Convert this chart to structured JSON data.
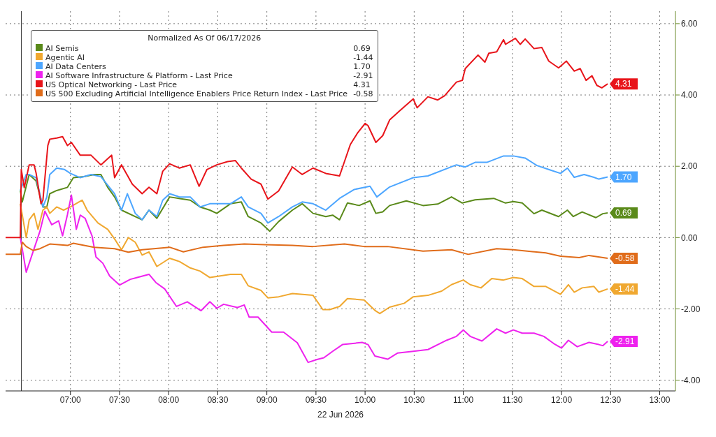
{
  "chart_data": {
    "type": "line",
    "xlabel": "22 Jun 2026",
    "legend_title": "Normalized As Of 06/17/2026",
    "legend": "top left",
    "grid": true,
    "line_style": "solid",
    "marker": "none",
    "xlim": [
      6.34,
      13.16
    ],
    "xticks": [
      {
        "value": 7,
        "label": "07:00"
      },
      {
        "value": 7.5,
        "label": "07:30"
      },
      {
        "value": 8,
        "label": "08:00"
      },
      {
        "value": 8.5,
        "label": "08:30"
      },
      {
        "value": 9,
        "label": "09:00"
      },
      {
        "value": 9.5,
        "label": "09:30"
      },
      {
        "value": 10,
        "label": "10:00"
      },
      {
        "value": 10.5,
        "label": "10:30"
      },
      {
        "value": 11,
        "label": "11:00"
      },
      {
        "value": 11.5,
        "label": "11:30"
      },
      {
        "value": 12,
        "label": "12:00"
      },
      {
        "value": 12.5,
        "label": "12:30"
      },
      {
        "value": 13,
        "label": "13:00"
      }
    ],
    "ylim": [
      -4.3,
      6.35
    ],
    "yticks": [
      {
        "value": -4,
        "label": "-4.00"
      },
      {
        "value": -2,
        "label": "-2.00"
      },
      {
        "value": 0,
        "label": "0.00"
      },
      {
        "value": 2,
        "label": "2.00"
      },
      {
        "value": 4,
        "label": "4.00"
      },
      {
        "value": 6,
        "label": "6.00"
      }
    ],
    "ref_lines": [
      {
        "axis": "x",
        "value": 6.5,
        "color": "#333333",
        "line_style": "solid"
      }
    ],
    "series": [
      {
        "name": "AI Semis",
        "color": "#5a8a1a",
        "x": [
          6.49,
          6.51,
          6.58,
          6.65,
          6.72,
          6.76,
          6.79,
          6.86,
          6.97,
          7.03,
          7.14,
          7.24,
          7.31,
          7.38,
          7.45,
          7.52,
          7.73,
          7.8,
          7.88,
          8.01,
          8.22,
          8.32,
          8.42,
          8.49,
          8.63,
          8.74,
          8.81,
          8.94,
          9.03,
          9.12,
          9.26,
          9.36,
          9.47,
          9.6,
          9.67,
          9.74,
          9.82,
          9.94,
          10.05,
          10.11,
          10.18,
          10.25,
          10.42,
          10.59,
          10.74,
          10.88,
          10.99,
          11.12,
          11.31,
          11.43,
          11.51,
          11.6,
          11.72,
          11.8,
          11.97,
          12.06,
          12.12,
          12.21,
          12.35,
          12.42,
          12.47
        ],
        "values": [
          1.32,
          1.0,
          1.77,
          1.59,
          0.86,
          0.86,
          1.23,
          1.32,
          1.41,
          1.68,
          1.71,
          1.77,
          1.77,
          1.41,
          1.14,
          0.77,
          0.5,
          0.77,
          0.54,
          1.14,
          1.05,
          0.86,
          0.77,
          0.68,
          0.95,
          1.0,
          0.59,
          0.41,
          0.18,
          0.45,
          0.77,
          0.95,
          0.68,
          0.59,
          0.63,
          0.5,
          0.97,
          0.9,
          1.03,
          0.68,
          0.72,
          0.9,
          1.03,
          0.9,
          0.94,
          1.14,
          0.97,
          1.06,
          1.1,
          0.97,
          1.01,
          0.97,
          0.67,
          0.77,
          0.59,
          0.77,
          0.59,
          0.72,
          0.56,
          0.67,
          0.69
        ],
        "value_labels": [
          null,
          null,
          null,
          null,
          null,
          null,
          null,
          null,
          null,
          null,
          null,
          null,
          null,
          null,
          null,
          null,
          null,
          null,
          null,
          null,
          null,
          null,
          null,
          null,
          null,
          null,
          null,
          null,
          null,
          null,
          null,
          null,
          null,
          null,
          null,
          null,
          null,
          null,
          null,
          null,
          null,
          null,
          null,
          null,
          null,
          null,
          null,
          null,
          null,
          null,
          null,
          null,
          null,
          null,
          null,
          null,
          null,
          null,
          null,
          null,
          "0.69"
        ]
      },
      {
        "name": "Agentic AI",
        "color": "#f0a830",
        "x": [
          6.49,
          6.55,
          6.58,
          6.63,
          6.67,
          6.72,
          6.76,
          6.79,
          6.86,
          6.93,
          7.0,
          7.12,
          7.17,
          7.28,
          7.38,
          7.45,
          7.52,
          7.59,
          7.66,
          7.73,
          7.8,
          7.88,
          8.01,
          8.11,
          8.22,
          8.32,
          8.42,
          8.63,
          8.74,
          8.81,
          8.94,
          9.01,
          9.12,
          9.26,
          9.47,
          9.57,
          9.64,
          9.74,
          9.82,
          9.99,
          10.1,
          10.15,
          10.25,
          10.4,
          10.49,
          10.64,
          10.78,
          10.88,
          11.0,
          11.07,
          11.18,
          11.29,
          11.41,
          11.51,
          11.6,
          11.72,
          11.84,
          11.99,
          12.07,
          12.13,
          12.21,
          12.33,
          12.38,
          12.47
        ],
        "values": [
          0.95,
          0,
          0.5,
          0.68,
          0.23,
          0.77,
          0.86,
          0.68,
          0.86,
          0.77,
          0.86,
          1.05,
          0.77,
          0.41,
          0.23,
          -0.04,
          -0.34,
          0,
          -0.13,
          -0.49,
          -0.4,
          -0.81,
          -0.58,
          -0.67,
          -0.85,
          -0.94,
          -1.12,
          -1.03,
          -1.03,
          -1.35,
          -1.48,
          -1.69,
          -1.66,
          -1.57,
          -1.62,
          -2.02,
          -2.02,
          -1.93,
          -1.71,
          -1.75,
          -2.04,
          -2.13,
          -1.95,
          -1.84,
          -1.66,
          -1.62,
          -1.5,
          -1.32,
          -1.19,
          -1.32,
          -1.41,
          -1.15,
          -1.19,
          -1.12,
          -1.15,
          -1.37,
          -1.37,
          -1.59,
          -1.32,
          -1.53,
          -1.41,
          -1.37,
          -1.53,
          -1.44
        ],
        "value_labels": [
          null,
          null,
          null,
          null,
          null,
          null,
          null,
          null,
          null,
          null,
          null,
          null,
          null,
          null,
          null,
          null,
          null,
          null,
          null,
          null,
          null,
          null,
          null,
          null,
          null,
          null,
          null,
          null,
          null,
          null,
          null,
          null,
          null,
          null,
          null,
          null,
          null,
          null,
          null,
          null,
          null,
          null,
          null,
          null,
          null,
          null,
          null,
          null,
          null,
          null,
          null,
          null,
          null,
          null,
          null,
          null,
          null,
          null,
          null,
          null,
          null,
          null,
          null,
          "-1.44"
        ]
      },
      {
        "name": "AI Data Centers",
        "color": "#4da6ff",
        "x": [
          6.49,
          6.55,
          6.58,
          6.65,
          6.72,
          6.76,
          6.79,
          6.86,
          6.94,
          7.0,
          7.1,
          7.21,
          7.31,
          7.45,
          7.52,
          7.58,
          7.66,
          7.73,
          7.8,
          7.88,
          7.94,
          8.01,
          8.11,
          8.22,
          8.32,
          8.42,
          8.63,
          8.74,
          8.81,
          8.94,
          9.01,
          9.12,
          9.26,
          9.36,
          9.47,
          9.6,
          9.74,
          9.89,
          10.05,
          10.12,
          10.25,
          10.49,
          10.64,
          10.93,
          11.02,
          11.12,
          11.24,
          11.41,
          11.51,
          11.63,
          11.75,
          11.89,
          11.99,
          12.06,
          12.13,
          12.23,
          12.33,
          12.38,
          12.47
        ],
        "values": [
          1.32,
          1.77,
          1.77,
          1.68,
          0.86,
          1.14,
          1.77,
          1.95,
          1.91,
          1.8,
          1.68,
          1.77,
          1.71,
          1.23,
          0.77,
          1.23,
          0.68,
          0.5,
          0.77,
          0.59,
          1.05,
          1.23,
          1.14,
          1.14,
          0.86,
          0.95,
          0.95,
          1.14,
          0.86,
          0.68,
          0.41,
          0.59,
          0.86,
          1.0,
          0.95,
          0.77,
          1.1,
          1.35,
          1.44,
          1.14,
          1.42,
          1.68,
          1.73,
          2.04,
          1.98,
          2.11,
          2.11,
          2.29,
          2.29,
          2.23,
          2.02,
          1.89,
          1.8,
          1.95,
          1.69,
          1.77,
          1.69,
          1.64,
          1.7
        ],
        "value_labels": [
          null,
          null,
          null,
          null,
          null,
          null,
          null,
          null,
          null,
          null,
          null,
          null,
          null,
          null,
          null,
          null,
          null,
          null,
          null,
          null,
          null,
          null,
          null,
          null,
          null,
          null,
          null,
          null,
          null,
          null,
          null,
          null,
          null,
          null,
          null,
          null,
          null,
          null,
          null,
          null,
          null,
          null,
          null,
          null,
          null,
          null,
          null,
          null,
          null,
          null,
          null,
          null,
          null,
          null,
          null,
          null,
          null,
          null,
          "1.70"
        ]
      },
      {
        "name": "AI Software Infrastructure & Platform - Last Price",
        "color": "#ee22ee",
        "x": [
          6.49,
          6.55,
          6.69,
          6.74,
          6.81,
          6.88,
          6.92,
          6.97,
          7.01,
          7.06,
          7.1,
          7.15,
          7.22,
          7.26,
          7.33,
          7.4,
          7.5,
          7.61,
          7.68,
          7.8,
          7.87,
          7.96,
          8.08,
          8.19,
          8.33,
          8.42,
          8.49,
          8.56,
          8.7,
          8.77,
          8.82,
          8.91,
          9.05,
          9.17,
          9.31,
          9.42,
          9.51,
          9.58,
          9.67,
          9.77,
          9.97,
          10.03,
          10.1,
          10.23,
          10.33,
          10.49,
          10.64,
          10.83,
          10.93,
          11.0,
          11.07,
          11.19,
          11.34,
          11.43,
          11.51,
          11.6,
          11.72,
          11.82,
          11.92,
          12.0,
          12.07,
          12.16,
          12.28,
          12.38,
          12.42,
          12.47
        ],
        "values": [
          0,
          -0.97,
          0.18,
          0.74,
          0.36,
          0.47,
          0.05,
          0.65,
          1.19,
          0.23,
          0.63,
          0.54,
          0.05,
          -0.54,
          -0.72,
          -1.08,
          -1.33,
          -1.17,
          -1.12,
          -1.03,
          -1.26,
          -1.44,
          -1.93,
          -1.8,
          -2.05,
          -1.8,
          -1.98,
          -1.87,
          -1.96,
          -1.89,
          -2.23,
          -2.23,
          -2.65,
          -2.65,
          -2.95,
          -3.5,
          -3.42,
          -3.37,
          -3.19,
          -3.0,
          -2.94,
          -3.0,
          -3.32,
          -3.41,
          -3.24,
          -3.19,
          -3.14,
          -2.88,
          -2.77,
          -2.59,
          -2.77,
          -2.9,
          -2.56,
          -2.68,
          -2.59,
          -2.68,
          -2.68,
          -2.77,
          -2.97,
          -3.1,
          -2.88,
          -3.06,
          -2.94,
          -3.0,
          -3.03,
          -2.91
        ],
        "value_labels": [
          null,
          null,
          null,
          null,
          null,
          null,
          null,
          null,
          null,
          null,
          null,
          null,
          null,
          null,
          null,
          null,
          null,
          null,
          null,
          null,
          null,
          null,
          null,
          null,
          null,
          null,
          null,
          null,
          null,
          null,
          null,
          null,
          null,
          null,
          null,
          null,
          null,
          null,
          null,
          null,
          null,
          null,
          null,
          null,
          null,
          null,
          null,
          null,
          null,
          null,
          null,
          null,
          null,
          null,
          null,
          null,
          null,
          null,
          null,
          null,
          null,
          null,
          null,
          null,
          null,
          "-2.91"
        ]
      },
      {
        "name": "US Optical Networking - Last Price",
        "color": "#e8141a",
        "x": [
          6.34,
          6.49,
          6.5,
          6.53,
          6.58,
          6.63,
          6.65,
          6.7,
          6.72,
          6.77,
          6.79,
          6.86,
          6.92,
          6.97,
          7.01,
          7.1,
          7.21,
          7.31,
          7.42,
          7.45,
          7.52,
          7.63,
          7.73,
          7.8,
          7.88,
          7.94,
          8.01,
          8.11,
          8.22,
          8.31,
          8.39,
          8.49,
          8.6,
          8.68,
          8.74,
          8.84,
          8.94,
          9.01,
          9.12,
          9.26,
          9.36,
          9.47,
          9.6,
          9.74,
          9.85,
          9.92,
          10.0,
          10.03,
          10.11,
          10.18,
          10.25,
          10.35,
          10.49,
          10.53,
          10.64,
          10.74,
          10.81,
          10.93,
          10.99,
          11.02,
          11.15,
          11.22,
          11.26,
          11.34,
          11.41,
          11.43,
          11.53,
          11.58,
          11.63,
          11.72,
          11.8,
          11.87,
          11.97,
          12.05,
          12.13,
          12.19,
          12.25,
          12.31,
          12.36,
          12.41,
          12.47
        ],
        "values": [
          0,
          0,
          1.91,
          1.4,
          2.04,
          2.04,
          1.82,
          0.95,
          1.05,
          2.58,
          2.76,
          2.79,
          2.83,
          2.58,
          2.67,
          2.31,
          2.31,
          2.04,
          2.31,
          1.68,
          2.04,
          1.5,
          1.23,
          1.41,
          1.23,
          1.86,
          2.07,
          1.95,
          2.04,
          1.44,
          1.91,
          2.04,
          2.13,
          2.16,
          1.95,
          1.64,
          1.5,
          1.08,
          1.31,
          1.98,
          1.77,
          1.95,
          1.8,
          1.73,
          2.61,
          2.92,
          3.2,
          3.14,
          2.67,
          2.86,
          3.3,
          3.55,
          3.89,
          3.64,
          3.95,
          3.86,
          3.98,
          4.36,
          4.41,
          4.74,
          5.12,
          4.92,
          5.17,
          5.21,
          5.55,
          5.42,
          5.59,
          5.42,
          5.57,
          5.3,
          5.33,
          4.95,
          4.76,
          4.95,
          4.67,
          4.74,
          4.41,
          4.54,
          4.27,
          4.2,
          4.31
        ],
        "value_labels": [
          null,
          null,
          null,
          null,
          null,
          null,
          null,
          null,
          null,
          null,
          null,
          null,
          null,
          null,
          null,
          null,
          null,
          null,
          null,
          null,
          null,
          null,
          null,
          null,
          null,
          null,
          null,
          null,
          null,
          null,
          null,
          null,
          null,
          null,
          null,
          null,
          null,
          null,
          null,
          null,
          null,
          null,
          null,
          null,
          null,
          null,
          null,
          null,
          null,
          null,
          null,
          null,
          null,
          null,
          null,
          null,
          null,
          null,
          null,
          null,
          null,
          null,
          null,
          null,
          null,
          null,
          null,
          null,
          null,
          null,
          null,
          null,
          null,
          null,
          null,
          null,
          null,
          null,
          null,
          null,
          "4.31"
        ]
      },
      {
        "name": "US 500 Excluding Artificial Intelligence Enablers Price Return Index - Last Price",
        "color": "#e06c1a",
        "x": [
          6.34,
          6.49,
          6.51,
          6.55,
          6.62,
          6.69,
          6.79,
          6.97,
          7.03,
          7.24,
          7.45,
          7.59,
          7.73,
          8.01,
          8.15,
          8.35,
          8.56,
          8.77,
          8.98,
          9.26,
          9.47,
          9.79,
          9.99,
          10.23,
          10.59,
          10.88,
          11.05,
          11.34,
          11.51,
          11.84,
          11.99,
          12.18,
          12.28,
          12.47
        ],
        "values": [
          -0.47,
          -0.47,
          -0.13,
          -0.25,
          -0.36,
          -0.31,
          -0.18,
          -0.22,
          -0.16,
          -0.27,
          -0.31,
          -0.41,
          -0.34,
          -0.27,
          -0.4,
          -0.27,
          -0.22,
          -0.18,
          -0.2,
          -0.22,
          -0.25,
          -0.18,
          -0.25,
          -0.25,
          -0.38,
          -0.34,
          -0.47,
          -0.31,
          -0.34,
          -0.43,
          -0.52,
          -0.56,
          -0.5,
          -0.58
        ],
        "value_labels": [
          null,
          null,
          null,
          null,
          null,
          null,
          null,
          null,
          null,
          null,
          null,
          null,
          null,
          null,
          null,
          null,
          null,
          null,
          null,
          null,
          null,
          null,
          null,
          null,
          null,
          null,
          null,
          null,
          null,
          null,
          null,
          null,
          null,
          "-0.58"
        ]
      }
    ]
  }
}
